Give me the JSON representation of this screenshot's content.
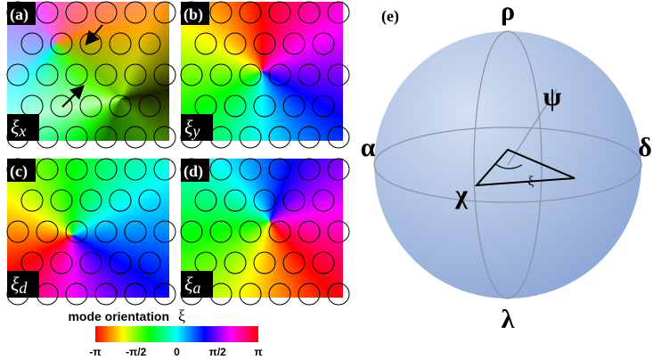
{
  "panels": [
    {
      "label": "(a)",
      "symbol": "ξ",
      "index": "x"
    },
    {
      "label": "(b)",
      "symbol": "ξ",
      "index": "y"
    },
    {
      "label": "(c)",
      "symbol": "ξ",
      "index": "d"
    },
    {
      "label": "(d)",
      "symbol": "ξ",
      "index": "a"
    }
  ],
  "colorbar": {
    "title": "mode orientation",
    "symbol": "ξ",
    "ticks": [
      "-π",
      "-π/2",
      "0",
      "π/2",
      "π"
    ]
  },
  "sphere": {
    "label": "(e)",
    "top": "ρ",
    "bottom": "λ",
    "left": "α",
    "right": "δ",
    "upper": "ψ",
    "front": "χ",
    "angle": "ξ"
  }
}
